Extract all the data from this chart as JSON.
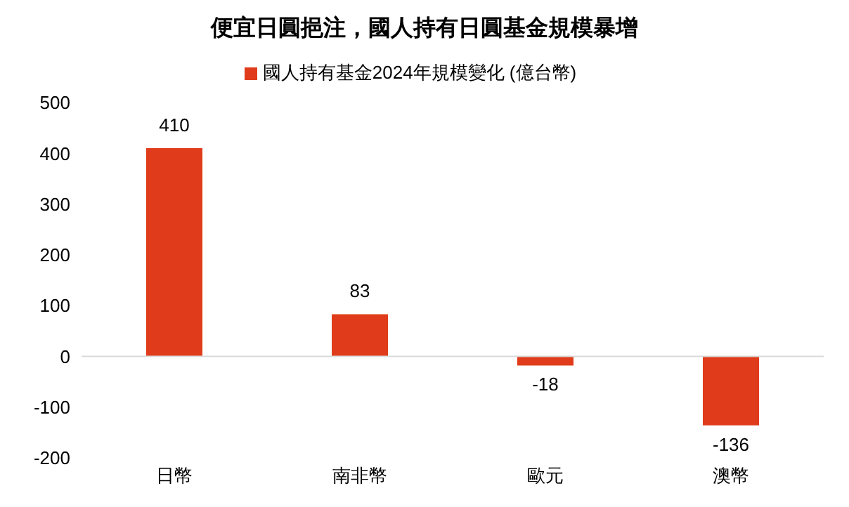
{
  "chart_data": {
    "type": "bar",
    "title": "便宜日圓挹注，國人持有日圓基金規模暴增",
    "categories": [
      "日幣",
      "南非幣",
      "歐元",
      "澳幣"
    ],
    "series": [
      {
        "name": "國人持有基金2024年規模變化 (億台幣)",
        "color": "#e03c1b",
        "values": [
          410,
          83,
          -18,
          -136
        ]
      }
    ],
    "ylim": [
      -200,
      500
    ],
    "yticks": [
      -200,
      -100,
      0,
      100,
      200,
      300,
      400,
      500
    ],
    "ref_lines": [
      {
        "axis": "y",
        "value": 0,
        "color": "#d9d9d9"
      }
    ],
    "legend": "top",
    "data_labels": true
  }
}
